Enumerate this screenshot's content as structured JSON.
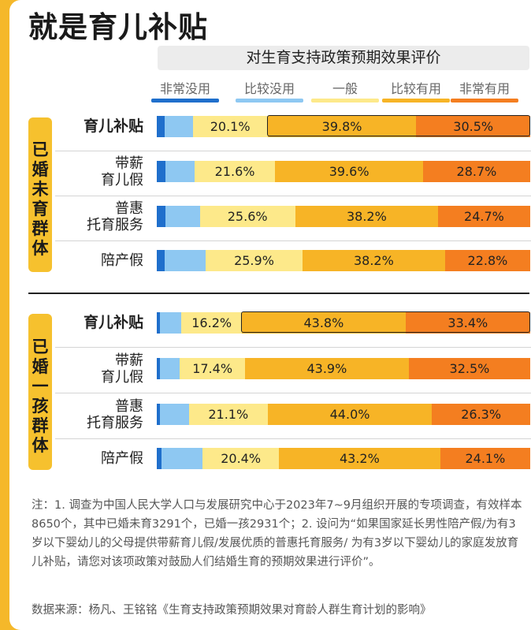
{
  "header": {
    "title": "就是育儿补贴",
    "subtitle": "对生育支持政策预期效果评价"
  },
  "chart_data": {
    "type": "bar",
    "orientation": "horizontal",
    "stacked": true,
    "title": "对生育支持政策预期效果评价",
    "xlim": [
      0,
      100
    ],
    "legend_position": "top",
    "series": [
      {
        "name": "非常没用",
        "color": "#1f6fcc"
      },
      {
        "name": "比较没用",
        "color": "#8ec8f2"
      },
      {
        "name": "一般",
        "color": "#fde98a"
      },
      {
        "name": "比较有用",
        "color": "#f7b426"
      },
      {
        "name": "非常有用",
        "color": "#f47e20"
      }
    ],
    "groups": [
      {
        "name": "已婚未育群体",
        "rows": [
          {
            "label": "育儿补贴",
            "highlight": true,
            "values": [
              2.1,
              7.5,
              20.1,
              39.8,
              30.5
            ]
          },
          {
            "label": "带薪\n育儿假",
            "highlight": false,
            "values": [
              2.3,
              7.8,
              21.6,
              39.6,
              28.7
            ]
          },
          {
            "label": "普惠\n托育服务",
            "highlight": false,
            "values": [
              2.4,
              9.1,
              25.6,
              38.2,
              24.7
            ]
          },
          {
            "label": "陪产假",
            "highlight": false,
            "values": [
              2.2,
              10.9,
              25.9,
              38.2,
              22.8
            ]
          }
        ]
      },
      {
        "name": "已婚一孩群体",
        "rows": [
          {
            "label": "育儿补贴",
            "highlight": true,
            "values": [
              0.9,
              5.7,
              16.2,
              43.8,
              33.4
            ]
          },
          {
            "label": "带薪\n育儿假",
            "highlight": false,
            "values": [
              0.8,
              5.4,
              17.4,
              43.9,
              32.5
            ]
          },
          {
            "label": "普惠\n托育服务",
            "highlight": false,
            "values": [
              0.9,
              7.7,
              21.1,
              44.0,
              26.3
            ]
          },
          {
            "label": "陪产假",
            "highlight": false,
            "values": [
              1.2,
              11.1,
              20.4,
              43.2,
              24.1
            ]
          }
        ]
      }
    ],
    "labeled_series": [
      2,
      3,
      4
    ]
  },
  "footer": {
    "note": "注：1.  调查为中国人民大学人口与发展研究中心于2023年7~9月组织开展的专项调查，有效样本8650个，其中已婚未育3291个，已婚一孩2931个；2.  设问为“如果国家延长男性陪产假/为有3岁以下婴幼儿的父母提供带薪育儿假/发展优质的普惠托育服务/ 为有3岁以下婴幼儿的家庭发放育儿补贴，请您对该项政策对鼓励人们结婚生育的预期效果进行评价”。",
    "source": "数据来源：杨凡、王铭铭《生育支持政策预期效果对育龄人群生育计划的影响》"
  }
}
